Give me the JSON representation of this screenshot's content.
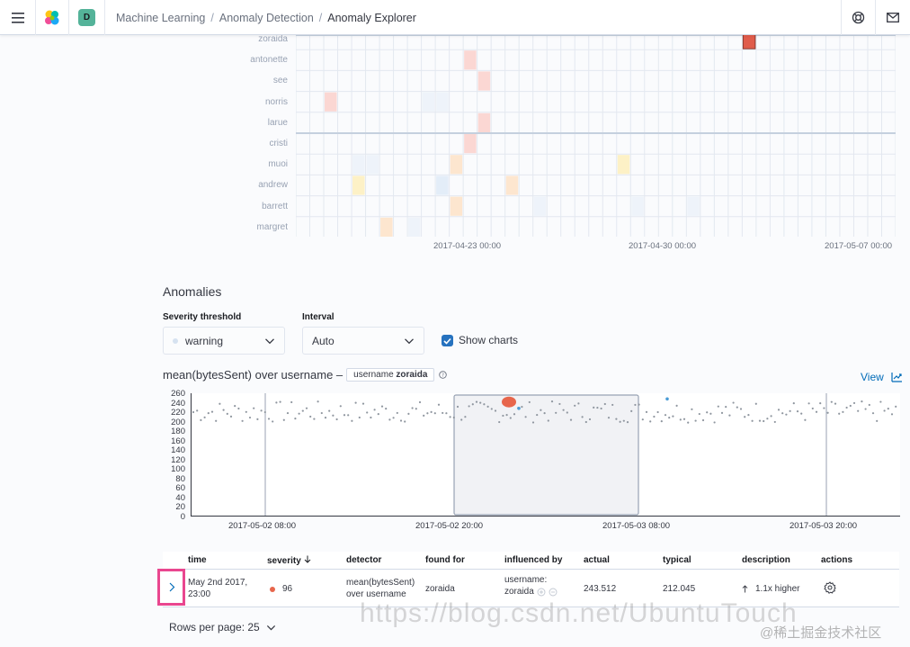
{
  "breadcrumbs": [
    "Machine Learning",
    "Anomaly Detection",
    "Anomaly Explorer"
  ],
  "space_avatar": "D",
  "swimlane": {
    "rows": [
      "zoraida",
      "antonette",
      "see",
      "norris",
      "larue",
      "cristi",
      "muoi",
      "andrew",
      "barrett",
      "margret"
    ],
    "x_labels": [
      "2017-04-23 00:00",
      "2017-04-30 00:00",
      "2017-05-07 00:00"
    ]
  },
  "anomalies": {
    "title": "Anomalies",
    "severity_label": "Severity threshold",
    "severity_value": "warning",
    "interval_label": "Interval",
    "interval_value": "Auto",
    "show_charts_label": "Show charts"
  },
  "chart": {
    "title": "mean(bytesSent) over username –",
    "badge_key": "username",
    "badge_value": "zoraida",
    "view_label": "View"
  },
  "chart_data": {
    "type": "scatter",
    "title": "mean(bytesSent) over username",
    "ylim": [
      0,
      260
    ],
    "yticks": [
      260,
      240,
      220,
      200,
      180,
      160,
      140,
      120,
      100,
      80,
      60,
      40,
      20,
      0
    ],
    "xticks": [
      "2017-05-02 08:00",
      "2017-05-02 20:00",
      "2017-05-03 08:00",
      "2017-05-03 20:00"
    ],
    "anomaly_point": 243.512
  },
  "table": {
    "headers": [
      "time",
      "severity",
      "detector",
      "found for",
      "influenced by",
      "actual",
      "typical",
      "description",
      "actions"
    ],
    "row": {
      "time_line1": "May 2nd 2017,",
      "time_line2": "23:00",
      "severity": "96",
      "detector_line1": "mean(bytesSent)",
      "detector_line2": "over username",
      "found_for": "zoraida",
      "influenced_line1": "username:",
      "influenced_line2": "zoraida",
      "actual": "243.512",
      "typical": "212.045",
      "description": "1.1x higher"
    },
    "rows_per_page": "Rows per page: 25"
  },
  "watermark": "https://blog.csdn.net/UbuntuTouch",
  "watermark2": "@稀土掘金技术社区",
  "colors": {
    "critical": "#e7664c",
    "accent": "#006bb8",
    "checkbox": "#2672bf",
    "highlight": "#e9468f"
  }
}
